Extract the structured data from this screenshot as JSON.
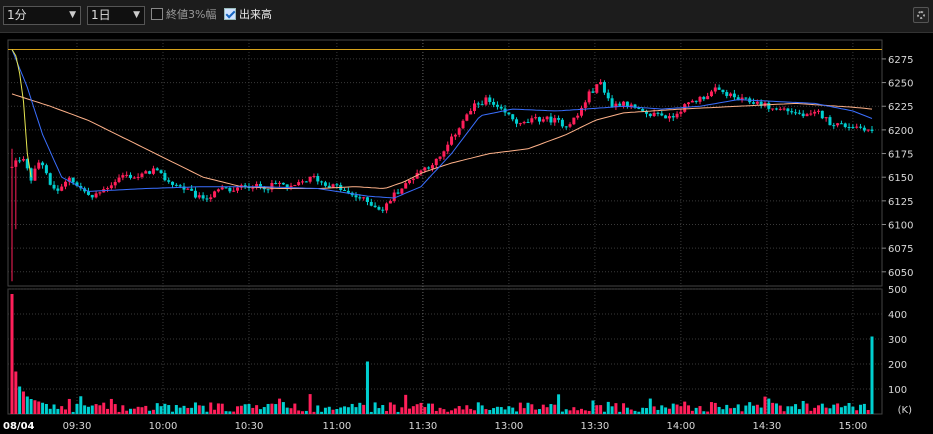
{
  "toolbar": {
    "interval": "1分",
    "period": "1日",
    "closing_range_label": "終値3%幅",
    "closing_range_checked": false,
    "volume_label": "出来高",
    "volume_checked": true
  },
  "chart_data": {
    "type": "candlestick",
    "date_label": "08/04",
    "x_ticks": [
      "09:30",
      "10:00",
      "10:30",
      "11:00",
      "11:30",
      "13:00",
      "13:30",
      "14:00",
      "14:30",
      "15:00"
    ],
    "price_ticks": [
      6275,
      6250,
      6225,
      6200,
      6175,
      6150,
      6125,
      6100,
      6075,
      6050
    ],
    "price_ylim": [
      6035,
      6295
    ],
    "volume_ticks": [
      500,
      400,
      300,
      200,
      100
    ],
    "volume_unit": "(K)",
    "volume_ylim": [
      0,
      500
    ],
    "reference_price": 6285,
    "price_path": [
      [
        0,
        6160
      ],
      [
        5,
        6172
      ],
      [
        10,
        6148
      ],
      [
        15,
        6170
      ],
      [
        20,
        6140
      ],
      [
        25,
        6135
      ],
      [
        30,
        6150
      ],
      [
        36,
        6138
      ],
      [
        42,
        6128
      ],
      [
        50,
        6140
      ],
      [
        58,
        6152
      ],
      [
        66,
        6150
      ],
      [
        74,
        6158
      ],
      [
        82,
        6145
      ],
      [
        90,
        6138
      ],
      [
        98,
        6128
      ],
      [
        104,
        6130
      ],
      [
        110,
        6138
      ],
      [
        116,
        6135
      ],
      [
        122,
        6142
      ],
      [
        128,
        6140
      ],
      [
        134,
        6140
      ],
      [
        140,
        6143
      ],
      [
        146,
        6138
      ],
      [
        152,
        6145
      ],
      [
        158,
        6150
      ],
      [
        164,
        6142
      ],
      [
        170,
        6140
      ],
      [
        176,
        6132
      ],
      [
        182,
        6128
      ],
      [
        188,
        6122
      ],
      [
        194,
        6115
      ],
      [
        200,
        6132
      ],
      [
        206,
        6142
      ],
      [
        212,
        6155
      ],
      [
        218,
        6162
      ],
      [
        224,
        6170
      ],
      [
        230,
        6190
      ],
      [
        236,
        6210
      ],
      [
        242,
        6225
      ],
      [
        248,
        6232
      ],
      [
        254,
        6222
      ],
      [
        260,
        6215
      ],
      [
        266,
        6205
      ],
      [
        272,
        6210
      ],
      [
        278,
        6212
      ],
      [
        284,
        6210
      ],
      [
        290,
        6205
      ],
      [
        296,
        6215
      ],
      [
        302,
        6238
      ],
      [
        308,
        6250
      ],
      [
        314,
        6225
      ],
      [
        320,
        6230
      ],
      [
        326,
        6222
      ],
      [
        332,
        6215
      ],
      [
        338,
        6218
      ],
      [
        344,
        6212
      ],
      [
        350,
        6222
      ],
      [
        356,
        6230
      ],
      [
        362,
        6235
      ],
      [
        368,
        6242
      ],
      [
        374,
        6238
      ],
      [
        380,
        6232
      ],
      [
        386,
        6230
      ],
      [
        392,
        6228
      ],
      [
        398,
        6222
      ],
      [
        404,
        6222
      ],
      [
        410,
        6218
      ],
      [
        416,
        6214
      ],
      [
        422,
        6218
      ],
      [
        428,
        6208
      ],
      [
        434,
        6205
      ],
      [
        440,
        6204
      ],
      [
        446,
        6202
      ],
      [
        450,
        6198
      ]
    ],
    "volume_early": [
      480,
      170,
      110,
      90,
      70,
      60,
      55,
      50,
      45,
      40
    ],
    "volume_last": 310,
    "ma_short": [
      [
        0,
        6285
      ],
      [
        8,
        6245
      ],
      [
        16,
        6195
      ],
      [
        26,
        6150
      ],
      [
        40,
        6135
      ],
      [
        70,
        6138
      ],
      [
        100,
        6140
      ],
      [
        130,
        6140
      ],
      [
        160,
        6138
      ],
      [
        186,
        6130
      ],
      [
        200,
        6128
      ],
      [
        214,
        6140
      ],
      [
        230,
        6175
      ],
      [
        245,
        6215
      ],
      [
        262,
        6222
      ],
      [
        285,
        6220
      ],
      [
        300,
        6222
      ],
      [
        320,
        6225
      ],
      [
        340,
        6222
      ],
      [
        360,
        6225
      ],
      [
        380,
        6232
      ],
      [
        400,
        6230
      ],
      [
        420,
        6228
      ],
      [
        440,
        6220
      ],
      [
        450,
        6212
      ]
    ],
    "ma_long": [
      [
        0,
        6238
      ],
      [
        20,
        6225
      ],
      [
        40,
        6210
      ],
      [
        60,
        6190
      ],
      [
        80,
        6170
      ],
      [
        100,
        6150
      ],
      [
        120,
        6140
      ],
      [
        140,
        6138
      ],
      [
        160,
        6138
      ],
      [
        180,
        6140
      ],
      [
        195,
        6138
      ],
      [
        205,
        6145
      ],
      [
        215,
        6155
      ],
      [
        230,
        6165
      ],
      [
        250,
        6175
      ],
      [
        270,
        6180
      ],
      [
        290,
        6195
      ],
      [
        305,
        6210
      ],
      [
        320,
        6218
      ],
      [
        350,
        6222
      ],
      [
        380,
        6225
      ],
      [
        410,
        6228
      ],
      [
        440,
        6224
      ],
      [
        450,
        6222
      ]
    ],
    "ma_very_short": [
      [
        0,
        6285
      ],
      [
        3,
        6275
      ],
      [
        6,
        6230
      ],
      [
        8,
        6175
      ],
      [
        10,
        6150
      ]
    ],
    "colors": {
      "up": "#ff1f5a",
      "down": "#00cfd0",
      "ma_short": "#3a6fff",
      "ma_long": "#ffb28a",
      "ma_very_short": "#e6e650",
      "reference": "#d6a21a",
      "grid": "#3a3a3a"
    }
  }
}
